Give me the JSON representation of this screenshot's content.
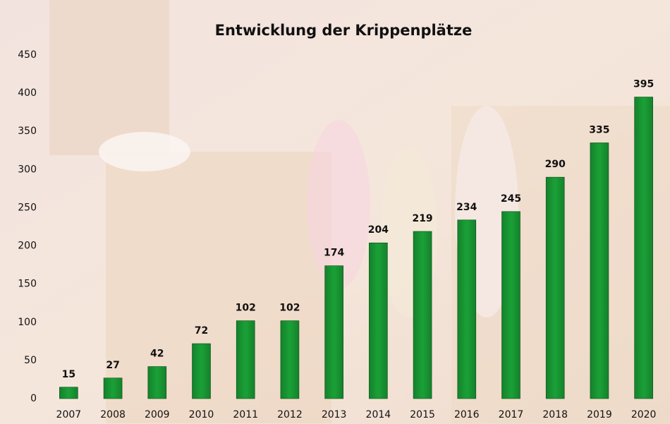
{
  "chart_data": {
    "type": "bar",
    "title": "Entwicklung der Krippenplätze",
    "categories": [
      "2007",
      "2008",
      "2009",
      "2010",
      "2011",
      "2012",
      "2013",
      "2014",
      "2015",
      "2016",
      "2017",
      "2018",
      "2019",
      "2020"
    ],
    "values": [
      15,
      27,
      42,
      72,
      102,
      102,
      174,
      204,
      219,
      234,
      245,
      290,
      335,
      395
    ],
    "color": "#1a9e36",
    "ylim": [
      0,
      450
    ],
    "yticks": [
      0,
      50,
      100,
      150,
      200,
      250,
      300,
      350,
      400,
      450
    ],
    "grid": false
  }
}
